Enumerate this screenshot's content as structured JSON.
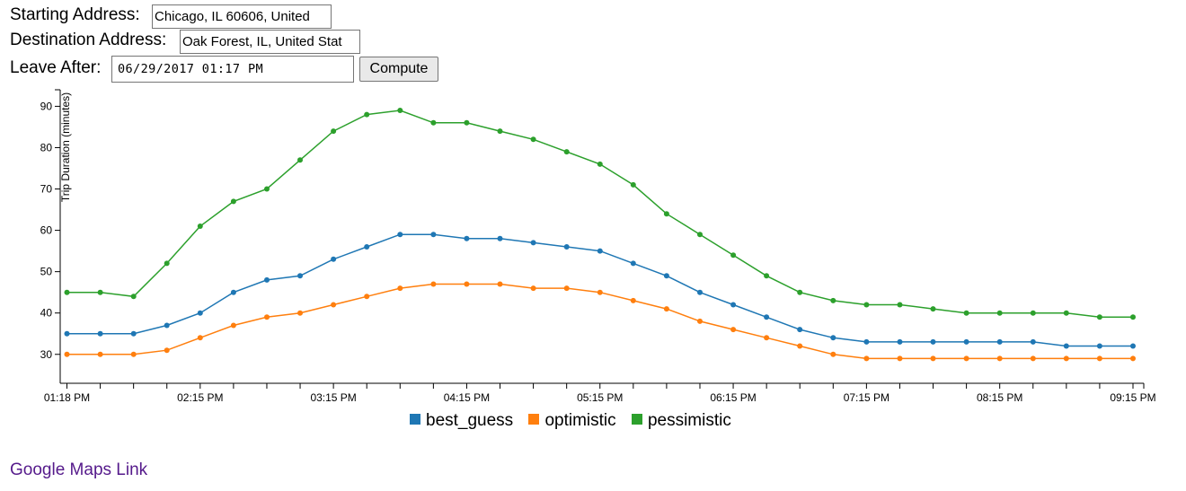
{
  "form": {
    "start_label": "Starting Address:",
    "start_value": "Chicago, IL 60606, United",
    "dest_label": "Destination Address:",
    "dest_value": "Oak Forest, IL, United Stat",
    "leave_label": "Leave After:",
    "leave_value": "06/29/2017 01:17 PM",
    "compute_label": "Compute"
  },
  "link": {
    "label": "Google Maps Link"
  },
  "chart_data": {
    "type": "line",
    "ylabel": "Trip Duration (minutes)",
    "xlabel": "",
    "ylim": [
      23,
      94
    ],
    "yticks": [
      30,
      40,
      50,
      60,
      70,
      80,
      90
    ],
    "x_labels": [
      "01:18 PM",
      "02:15 PM",
      "03:15 PM",
      "04:15 PM",
      "05:15 PM",
      "06:15 PM",
      "07:15 PM",
      "08:15 PM",
      "09:15 PM"
    ],
    "x_label_index": [
      0,
      4,
      8,
      12,
      16,
      20,
      24,
      28,
      32
    ],
    "point_count": 33,
    "series": [
      {
        "name": "best_guess",
        "color": "#1f77b4",
        "values": [
          35,
          35,
          35,
          37,
          40,
          45,
          48,
          49,
          53,
          56,
          59,
          59,
          58,
          58,
          57,
          56,
          55,
          52,
          49,
          45,
          42,
          39,
          36,
          34,
          33,
          33,
          33,
          33,
          33,
          33,
          32,
          32,
          32
        ]
      },
      {
        "name": "optimistic",
        "color": "#ff7f0e",
        "values": [
          30,
          30,
          30,
          31,
          34,
          37,
          39,
          40,
          42,
          44,
          46,
          47,
          47,
          47,
          46,
          46,
          45,
          43,
          41,
          38,
          36,
          34,
          32,
          30,
          29,
          29,
          29,
          29,
          29,
          29,
          29,
          29,
          29
        ]
      },
      {
        "name": "pessimistic",
        "color": "#2ca02c",
        "values": [
          45,
          45,
          44,
          52,
          61,
          67,
          70,
          77,
          84,
          88,
          89,
          86,
          86,
          84,
          82,
          79,
          76,
          71,
          64,
          59,
          54,
          49,
          45,
          43,
          42,
          42,
          41,
          40,
          40,
          40,
          40,
          39,
          39
        ]
      }
    ],
    "legend_position": "bottom-center",
    "grid": false
  }
}
